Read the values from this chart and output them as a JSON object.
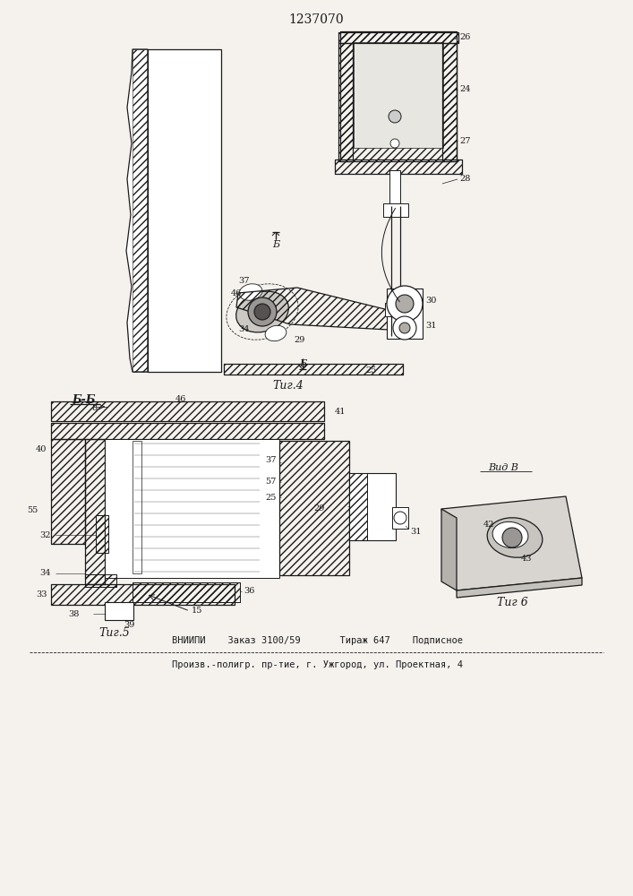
{
  "title": "1237070",
  "fig4_label": "Τиг.4",
  "fig5_label": "Τиг.5",
  "fig6_label": "Τиг 6",
  "section_label_bb": "Б-Б",
  "view_label": "Вид В",
  "footer_line1": "ВНИИПИ    Заказ 3100/59       Тираж 647    Подписное",
  "footer_line2": "Произв.-полигр. пр-тие, г. Ужгород, ул. Проектная, 4",
  "bg_color": "#f5f2ee",
  "line_color": "#1a1a1a"
}
